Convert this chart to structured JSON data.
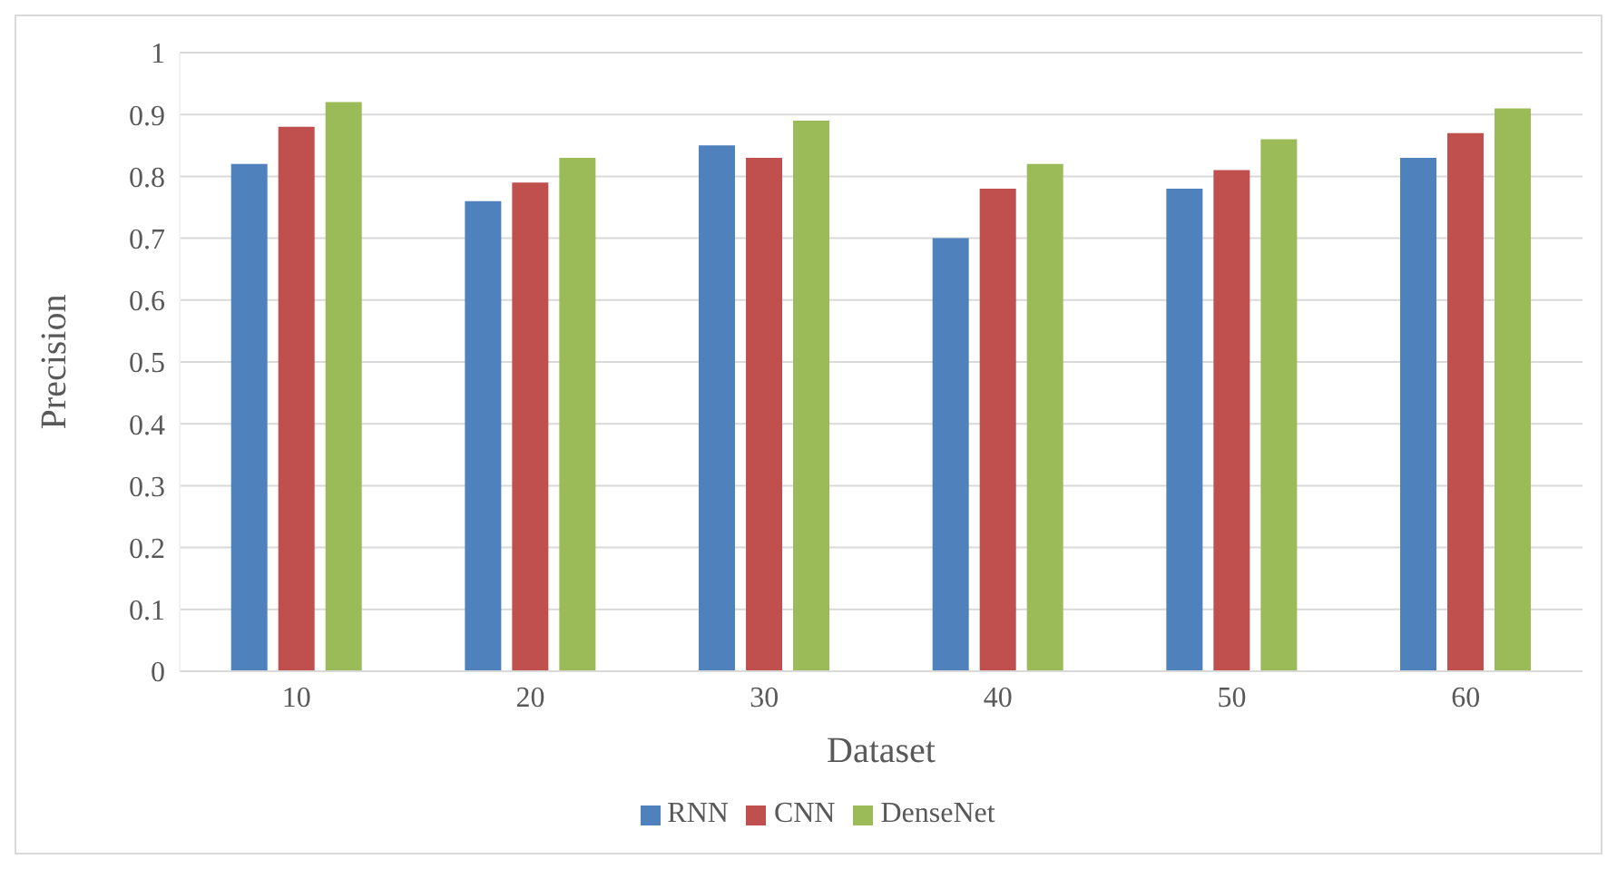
{
  "chart_data": {
    "type": "bar",
    "xlabel": "Dataset",
    "ylabel": "Precision",
    "categories": [
      "10",
      "20",
      "30",
      "40",
      "50",
      "60"
    ],
    "series": [
      {
        "name": "RNN",
        "color": "#4f81bd",
        "values": [
          0.82,
          0.76,
          0.85,
          0.7,
          0.78,
          0.83
        ]
      },
      {
        "name": "CNN",
        "color": "#c0504d",
        "values": [
          0.88,
          0.79,
          0.83,
          0.78,
          0.81,
          0.87
        ]
      },
      {
        "name": "DenseNet",
        "color": "#9bbb59",
        "values": [
          0.92,
          0.83,
          0.89,
          0.82,
          0.86,
          0.91
        ]
      }
    ],
    "ylim": [
      0,
      1
    ],
    "yticks": [
      0,
      0.1,
      0.2,
      0.3,
      0.4,
      0.5,
      0.6,
      0.7,
      0.8,
      0.9,
      1
    ],
    "grid": "y",
    "legend": "bottom"
  }
}
